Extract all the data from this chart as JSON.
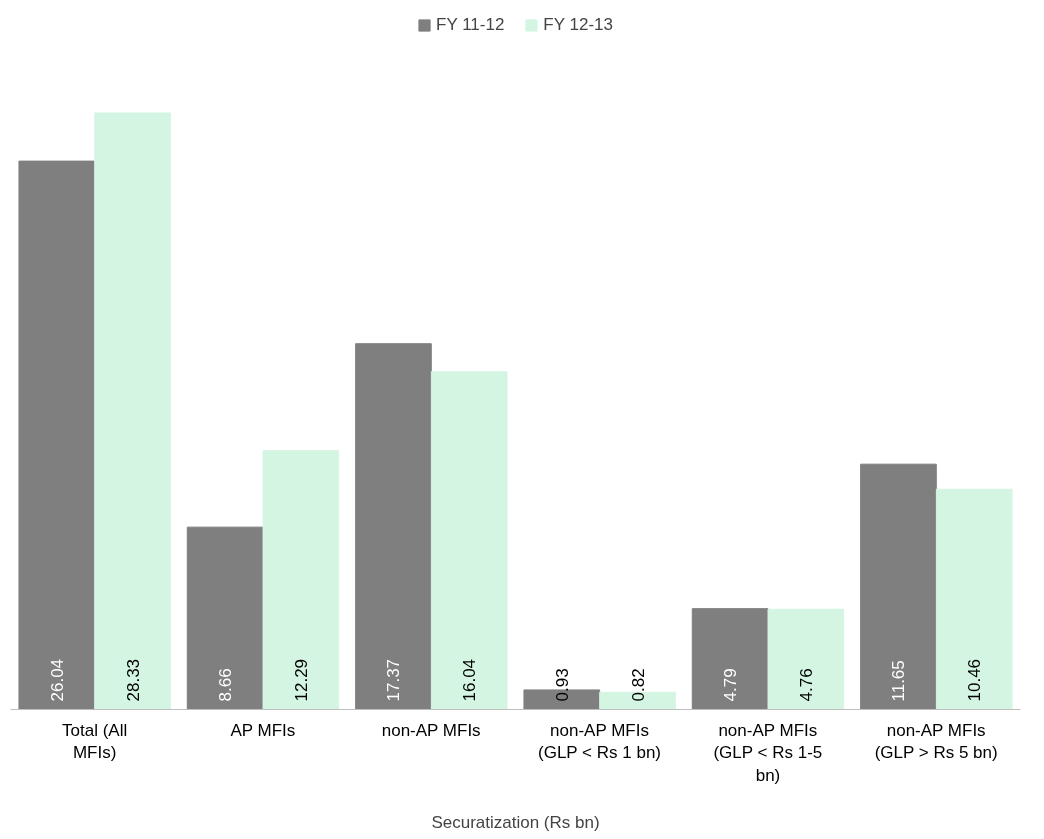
{
  "chart_data": {
    "type": "bar",
    "xlabel": "Securatization (Rs bn)",
    "categories": [
      "Total (All MFIs)",
      "AP MFIs",
      "non-AP MFIs",
      "non-AP MFIs (GLP < Rs 1 bn)",
      "non-AP MFIs (GLP < Rs 1-5 bn)",
      "non-AP MFIs (GLP > Rs 5 bn)"
    ],
    "series": [
      {
        "name": "FY 11-12",
        "color": "#7f7f7f",
        "values": [
          26.04,
          8.66,
          17.37,
          0.93,
          4.79,
          11.65
        ]
      },
      {
        "name": "FY 12-13",
        "color": "#d5f5e3",
        "values": [
          28.33,
          12.29,
          16.04,
          0.82,
          4.76,
          10.46
        ]
      }
    ],
    "data_labels": true,
    "legend": "top",
    "grid": false
  }
}
